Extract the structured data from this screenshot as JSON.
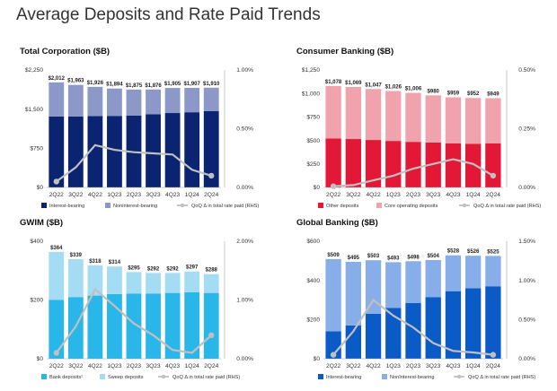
{
  "page_title": "Average Deposits and Rate Paid Trends",
  "chart_data": [
    {
      "type": "bar",
      "stacked": true,
      "title": "Total Corporation ($B)",
      "categories": [
        "2Q22",
        "3Q22",
        "4Q22",
        "1Q23",
        "2Q23",
        "3Q23",
        "4Q23",
        "1Q24",
        "2Q24"
      ],
      "yticks": [
        "$0",
        "$750",
        "$1,500",
        "$2,250"
      ],
      "ylim": [
        0,
        2250
      ],
      "y2ticks": [
        "0.00%",
        "0.50%",
        "1.00%"
      ],
      "y2lim": [
        0,
        1.0
      ],
      "series": [
        {
          "name": "Interest-bearing",
          "values": [
            1360,
            1360,
            1368,
            1370,
            1374,
            1400,
            1425,
            1440,
            1460
          ],
          "color": "#0a2472"
        },
        {
          "name": "Noninterest-bearing",
          "values": [
            652,
            603,
            558,
            524,
            501,
            476,
            480,
            467,
            450
          ],
          "color": "#8b98c8"
        }
      ],
      "totals": [
        "$2,012",
        "$1,963",
        "$1,926",
        "$1,894",
        "$1,875",
        "$1,876",
        "$1,905",
        "$1,907",
        "$1,910"
      ],
      "line": {
        "name": "QoQ Δ in total rate paid (RHS)",
        "values": [
          0.05,
          0.17,
          0.36,
          0.32,
          0.3,
          0.29,
          0.28,
          0.15,
          0.1
        ],
        "color": "#c0c0c0"
      }
    },
    {
      "type": "bar",
      "stacked": true,
      "title": "Consumer Banking ($B)",
      "categories": [
        "2Q22",
        "3Q22",
        "4Q22",
        "1Q23",
        "2Q23",
        "3Q23",
        "4Q23",
        "1Q24",
        "2Q24"
      ],
      "yticks": [
        "$0",
        "$250",
        "$500",
        "$750",
        "$1,000",
        "$1,250"
      ],
      "ylim": [
        0,
        1250
      ],
      "y2ticks": [
        "0.00%",
        "0.25%",
        "0.50%"
      ],
      "y2lim": [
        0,
        0.5
      ],
      "series": [
        {
          "name": "Other deposits",
          "values": [
            520,
            515,
            505,
            495,
            485,
            478,
            470,
            465,
            470
          ],
          "color": "#e31837"
        },
        {
          "name": "Core operating deposits",
          "values": [
            558,
            554,
            542,
            531,
            521,
            502,
            489,
            487,
            479
          ],
          "color": "#f0a3ac"
        }
      ],
      "totals": [
        "$1,078",
        "$1,069",
        "$1,047",
        "$1,026",
        "$1,006",
        "$980",
        "$959",
        "$952",
        "$949"
      ],
      "line": {
        "name": "QoQ Δ in total rate paid (RHS)",
        "values": [
          0.005,
          0.01,
          0.03,
          0.05,
          0.08,
          0.1,
          0.12,
          0.1,
          0.05
        ],
        "color": "#c0c0c0"
      }
    },
    {
      "type": "bar",
      "stacked": true,
      "title": "GWIM ($B)",
      "categories": [
        "2Q22",
        "3Q22",
        "4Q22",
        "1Q23",
        "2Q23",
        "3Q23",
        "4Q23",
        "1Q24",
        "2Q24"
      ],
      "yticks": [
        "$0",
        "$200",
        "$400"
      ],
      "ylim": [
        0,
        400
      ],
      "y2ticks": [
        "0.00%",
        "1.00%",
        "2.00%"
      ],
      "y2lim": [
        0,
        2.0
      ],
      "series": [
        {
          "name": "Bank deposits¹",
          "values": [
            200,
            210,
            215,
            220,
            222,
            222,
            224,
            226,
            224
          ],
          "color": "#29b6e8"
        },
        {
          "name": "Sweep deposits",
          "values": [
            164,
            129,
            103,
            94,
            73,
            70,
            68,
            71,
            64
          ],
          "color": "#a3dcf3"
        }
      ],
      "totals": [
        "$364",
        "$339",
        "$318",
        "$314",
        "$295",
        "$292",
        "$292",
        "$297",
        "$288"
      ],
      "line": {
        "name": "QoQ Δ in total rate paid (RHS)",
        "values": [
          0.1,
          0.55,
          1.18,
          0.9,
          0.6,
          0.4,
          0.15,
          0.1,
          0.4
        ],
        "color": "#c0c0c0"
      }
    },
    {
      "type": "bar",
      "stacked": true,
      "title": "Global Banking ($B)",
      "categories": [
        "2Q22",
        "3Q22",
        "4Q22",
        "1Q23",
        "2Q23",
        "3Q23",
        "4Q23",
        "1Q24",
        "2Q24"
      ],
      "yticks": [
        "$0",
        "$200",
        "$400",
        "$600"
      ],
      "ylim": [
        0,
        600
      ],
      "y2ticks": [
        "0.00%",
        "0.50%",
        "1.00%",
        "1.50%"
      ],
      "y2lim": [
        0,
        1.5
      ],
      "series": [
        {
          "name": "Interest-bearing",
          "values": [
            140,
            170,
            230,
            260,
            285,
            315,
            345,
            360,
            370
          ],
          "color": "#0b5bc7"
        },
        {
          "name": "NonInterest-bearing",
          "values": [
            369,
            325,
            273,
            233,
            213,
            189,
            183,
            166,
            155
          ],
          "color": "#87aee8"
        }
      ],
      "totals": [
        "$509",
        "$495",
        "$503",
        "$493",
        "$498",
        "$504",
        "$528",
        "$526",
        "$525"
      ],
      "line": {
        "name": "QoQ Δ in total rate paid (RHS)",
        "values": [
          0.05,
          0.35,
          0.75,
          0.55,
          0.4,
          0.2,
          0.1,
          0.08,
          0.05
        ],
        "color": "#c0c0c0"
      }
    }
  ]
}
